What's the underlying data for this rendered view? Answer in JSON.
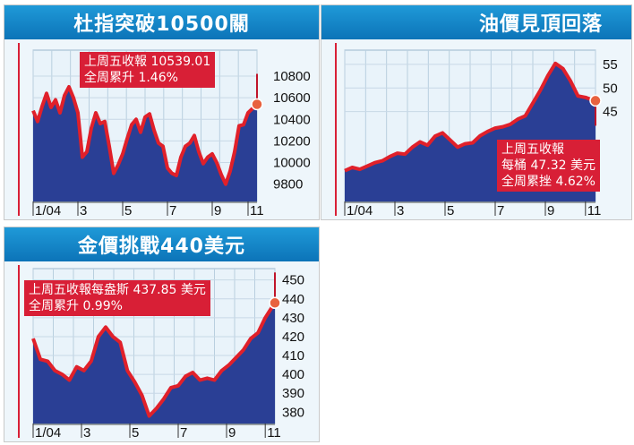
{
  "charts": [
    {
      "id": "dow",
      "title": "杜指突破10500關",
      "annotation": [
        "上周五收報 10539.01",
        "全周累升 1.46%"
      ],
      "chart_data": {
        "type": "area",
        "title": "杜指突破10500關",
        "x_tick_labels": [
          "1/04",
          "3",
          "5",
          "7",
          "9",
          "11"
        ],
        "y_ticks": [
          9800,
          10000,
          10200,
          10400,
          10600,
          10800
        ],
        "ylim": [
          9640,
          11040
        ],
        "xlim": [
          0,
          100
        ],
        "x": [
          0,
          2,
          4,
          6,
          8,
          10,
          12,
          14,
          16,
          18,
          20,
          22,
          24,
          26,
          28,
          30,
          32,
          34,
          36,
          38,
          40,
          42,
          44,
          46,
          48,
          50,
          52,
          54,
          56,
          58,
          60,
          62,
          64,
          66,
          68,
          70,
          72,
          74,
          76,
          78,
          80,
          82,
          84,
          86,
          88,
          90,
          92,
          94,
          96,
          98,
          100
        ],
        "values": [
          10480,
          10380,
          10520,
          10640,
          10510,
          10580,
          10460,
          10620,
          10700,
          10600,
          10460,
          10050,
          10100,
          10320,
          10460,
          10360,
          10380,
          10150,
          9900,
          9980,
          10080,
          10220,
          10350,
          10400,
          10280,
          10420,
          10450,
          10300,
          10180,
          10150,
          9950,
          9900,
          9880,
          10050,
          10150,
          10180,
          10250,
          10100,
          9990,
          10050,
          10080,
          10000,
          9890,
          9800,
          9920,
          10100,
          10340,
          10350,
          10460,
          10500,
          10539.01
        ]
      }
    },
    {
      "id": "oil",
      "title": "油價見頂回落",
      "annotation": [
        "上周五收報",
        "每桶 47.32 美元",
        "全周累挫 4.62%"
      ],
      "chart_data": {
        "type": "area",
        "title": "油價見頂回落",
        "x_tick_labels": [
          "1/04",
          "3",
          "5",
          "7",
          "9",
          "11"
        ],
        "y_ticks": [
          45,
          50,
          55
        ],
        "ylim": [
          26,
          58
        ],
        "xlim": [
          0,
          100
        ],
        "x": [
          0,
          3,
          6,
          9,
          12,
          15,
          18,
          21,
          24,
          27,
          30,
          33,
          36,
          39,
          42,
          45,
          48,
          51,
          54,
          57,
          60,
          63,
          66,
          69,
          72,
          75,
          78,
          81,
          84,
          87,
          90,
          93,
          96,
          98,
          100
        ],
        "values": [
          32.5,
          33.2,
          32.8,
          33.5,
          34.2,
          34.6,
          35.5,
          36.2,
          36.0,
          37.5,
          38.6,
          37.9,
          39.8,
          40.5,
          39.0,
          37.5,
          38.2,
          38.4,
          39.9,
          40.8,
          41.5,
          41.8,
          42.3,
          43.4,
          44.1,
          46.8,
          49.5,
          52.6,
          55.2,
          54.1,
          51.5,
          48.3,
          48.0,
          47.6,
          47.32
        ]
      }
    },
    {
      "id": "gold",
      "title": "金價挑戰440美元",
      "annotation": [
        "上周五收報每盎斯 437.85 美元",
        "全周累升 0.99%"
      ],
      "chart_data": {
        "type": "area",
        "title": "金價挑戰440美元",
        "x_tick_labels": [
          "1/04",
          "3",
          "5",
          "7",
          "9",
          "11"
        ],
        "y_ticks": [
          380,
          390,
          400,
          410,
          420,
          430,
          440,
          450
        ],
        "ylim": [
          374,
          456
        ],
        "xlim": [
          0,
          100
        ],
        "x": [
          0,
          3,
          6,
          9,
          12,
          15,
          18,
          21,
          24,
          27,
          30,
          33,
          36,
          39,
          42,
          45,
          48,
          51,
          54,
          57,
          60,
          63,
          66,
          69,
          72,
          75,
          78,
          81,
          84,
          87,
          90,
          93,
          96,
          98,
          100
        ],
        "values": [
          419,
          408,
          407,
          402,
          400,
          397,
          404,
          402,
          407,
          420,
          425,
          420,
          417,
          402,
          396,
          389,
          378,
          382,
          387,
          393,
          394,
          399,
          401,
          397,
          398,
          397,
          402,
          405,
          409,
          413,
          419,
          422,
          430,
          434,
          437.85
        ]
      }
    }
  ]
}
